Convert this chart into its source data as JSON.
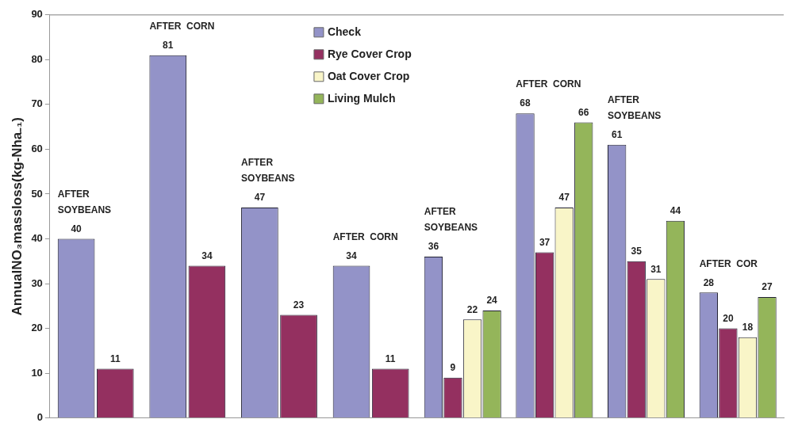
{
  "chart_data": {
    "type": "bar",
    "ylabel": "AnnualNO₃massloss(kg-Nha₋₁)",
    "categories": [
      null,
      null,
      null,
      null,
      null,
      null,
      null,
      null
    ],
    "series": [
      {
        "name": "Check",
        "color": "#9393c8",
        "values": [
          40,
          81,
          47,
          34,
          36,
          68,
          61,
          28
        ]
      },
      {
        "name": "Rye Cover Crop",
        "color": "#943060",
        "values": [
          11,
          34,
          23,
          11,
          9,
          37,
          35,
          20
        ]
      },
      {
        "name": "Oat Cover Crop",
        "color": "#f9f5c8",
        "values": [
          null,
          null,
          null,
          null,
          22,
          47,
          31,
          18
        ]
      },
      {
        "name": "Living Mulch",
        "color": "#94b55a",
        "values": [
          null,
          null,
          null,
          null,
          24,
          66,
          44,
          27
        ]
      }
    ],
    "ylim": [
      0,
      90
    ],
    "yticks": [
      0,
      10,
      20,
      30,
      40,
      50,
      60,
      70,
      80,
      90
    ],
    "grid": false,
    "legend": "top",
    "data_labels": true,
    "annotations": [
      "AFTER\nSOYBEANS",
      "AFTER  CORN",
      "AFTER\nSOYBEANS",
      "AFTER  CORN",
      "AFTER\nSOYBEANS",
      "AFTER  CORN",
      "AFTER\nSOYBEANS",
      "AFTER  COR"
    ]
  }
}
